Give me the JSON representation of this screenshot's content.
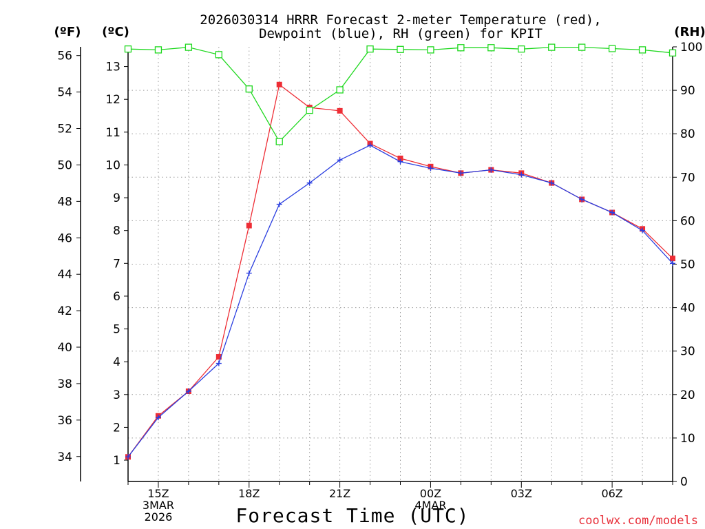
{
  "chart_data": {
    "type": "line",
    "title_line1": "2026030314 HRRR Forecast 2-meter Temperature (red),",
    "title_line2": "Dewpoint (blue), RH (green) for KPIT",
    "unit_f": "(ºF)",
    "unit_c": "(ºC)",
    "unit_rh": "(RH)",
    "xlabel": "Forecast Time (UTC)",
    "credit": "coolwx.com/models",
    "x_hours": [
      14,
      15,
      16,
      17,
      18,
      19,
      20,
      21,
      22,
      23,
      24,
      25,
      26,
      27,
      28,
      29,
      30,
      31,
      32
    ],
    "xlim": [
      14,
      32
    ],
    "celsius_ylim": [
      0.35,
      13.6
    ],
    "rh_ylim": [
      0,
      100
    ],
    "fahrenheit_ticks": [
      "34",
      "36",
      "38",
      "40",
      "42",
      "44",
      "46",
      "48",
      "50",
      "52",
      "54",
      "56"
    ],
    "fahrenheit_values": [
      34,
      36,
      38,
      40,
      42,
      44,
      46,
      48,
      50,
      52,
      54,
      56
    ],
    "celsius_ticks": [
      "1",
      "2",
      "3",
      "4",
      "5",
      "6",
      "7",
      "8",
      "9",
      "10",
      "11",
      "12",
      "13"
    ],
    "celsius_values": [
      1,
      2,
      3,
      4,
      5,
      6,
      7,
      8,
      9,
      10,
      11,
      12,
      13
    ],
    "rh_ticks": [
      "0",
      "10",
      "20",
      "30",
      "40",
      "50",
      "60",
      "70",
      "80",
      "90",
      "100"
    ],
    "rh_values": [
      0,
      10,
      20,
      30,
      40,
      50,
      60,
      70,
      80,
      90,
      100
    ],
    "x_ticks": [
      {
        "hour": 15,
        "lines": [
          "15Z",
          "3MAR",
          "2026"
        ]
      },
      {
        "hour": 18,
        "lines": [
          "18Z"
        ]
      },
      {
        "hour": 21,
        "lines": [
          "21Z"
        ]
      },
      {
        "hour": 24,
        "lines": [
          "00Z",
          "4MAR"
        ]
      },
      {
        "hour": 27,
        "lines": [
          "03Z"
        ]
      },
      {
        "hour": 30,
        "lines": [
          "06Z"
        ]
      }
    ],
    "series": [
      {
        "name": "Temperature",
        "axis": "celsius",
        "color": "#ee2d35",
        "marker": "filled-square",
        "values": [
          1.1,
          2.35,
          3.1,
          4.15,
          8.15,
          12.45,
          11.75,
          11.65,
          10.65,
          10.2,
          9.95,
          9.75,
          9.85,
          9.75,
          9.45,
          8.95,
          8.55,
          8.05,
          7.15
        ]
      },
      {
        "name": "Dewpoint",
        "axis": "celsius",
        "color": "#2b3fe0",
        "marker": "plus",
        "values": [
          1.1,
          2.3,
          3.1,
          3.95,
          6.7,
          8.8,
          9.45,
          10.15,
          10.6,
          10.1,
          9.9,
          9.75,
          9.85,
          9.7,
          9.45,
          8.95,
          8.55,
          8.0,
          7.0
        ]
      },
      {
        "name": "RH",
        "axis": "rh",
        "color": "#1ed81e",
        "marker": "open-square",
        "values": [
          99.5,
          99.3,
          99.9,
          98.2,
          90.3,
          78.2,
          85.4,
          90.1,
          99.5,
          99.4,
          99.3,
          99.8,
          99.8,
          99.5,
          99.9,
          99.9,
          99.6,
          99.3,
          98.6
        ]
      }
    ]
  }
}
